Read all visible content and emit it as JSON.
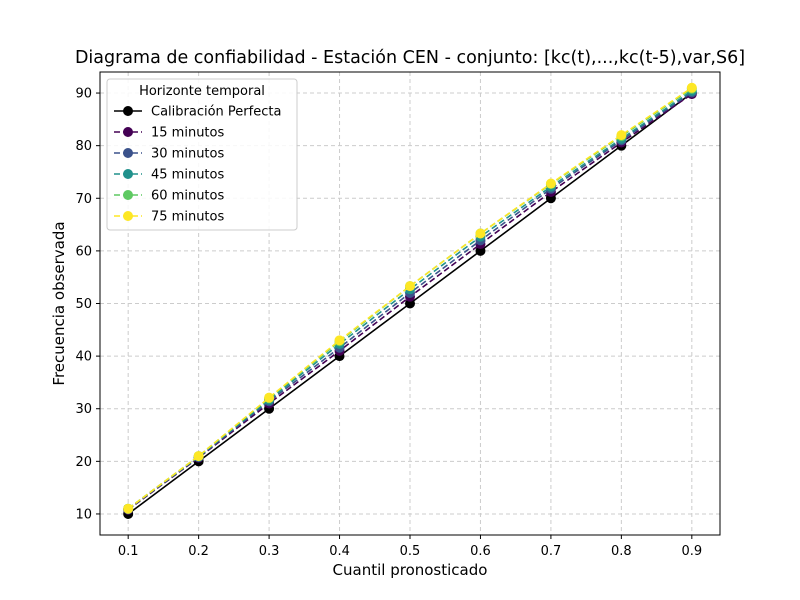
{
  "chart_data": {
    "type": "line",
    "title": "Diagrama de confiabilidad - Estación CEN - conjunto: [kc(t),...,kc(t-5),var,S6]",
    "xlabel": "Cuantil pronosticado",
    "ylabel": "Frecuencia observada",
    "x": [
      0.1,
      0.2,
      0.3,
      0.4,
      0.5,
      0.6,
      0.7,
      0.8,
      0.9
    ],
    "xticks": [
      "0.1",
      "0.2",
      "0.3",
      "0.4",
      "0.5",
      "0.6",
      "0.7",
      "0.8",
      "0.9"
    ],
    "yticks": [
      "10",
      "20",
      "30",
      "40",
      "50",
      "60",
      "70",
      "80",
      "90"
    ],
    "xlim": [
      0.06,
      0.94
    ],
    "ylim": [
      6,
      94
    ],
    "grid": true,
    "legend": {
      "title": "Horizonte temporal",
      "position": "top-left"
    },
    "series": [
      {
        "name": "Calibración Perfecta",
        "color": "#000000",
        "dashed": false,
        "values": [
          10,
          20,
          30,
          40,
          50,
          60,
          70,
          80,
          90
        ]
      },
      {
        "name": "15 minutos",
        "color": "#440154",
        "dashed": true,
        "values": [
          10.8,
          20.7,
          31.0,
          41.0,
          51.3,
          61.3,
          71.2,
          80.6,
          89.8
        ]
      },
      {
        "name": "30 minutos",
        "color": "#3b528b",
        "dashed": true,
        "values": [
          10.9,
          20.8,
          31.4,
          41.6,
          52.0,
          62.0,
          71.8,
          81.0,
          90.1
        ]
      },
      {
        "name": "45 minutos",
        "color": "#21918c",
        "dashed": true,
        "values": [
          11.0,
          20.9,
          31.7,
          42.3,
          52.7,
          62.7,
          72.2,
          81.3,
          90.4
        ]
      },
      {
        "name": "60 minutos",
        "color": "#5ec962",
        "dashed": true,
        "values": [
          11.0,
          21.0,
          32.0,
          42.8,
          53.3,
          63.3,
          72.7,
          81.8,
          90.8
        ]
      },
      {
        "name": "75 minutos",
        "color": "#fde725",
        "dashed": true,
        "values": [
          11.0,
          21.0,
          32.1,
          43.0,
          53.3,
          63.3,
          72.8,
          82.0,
          91.0
        ]
      }
    ]
  }
}
